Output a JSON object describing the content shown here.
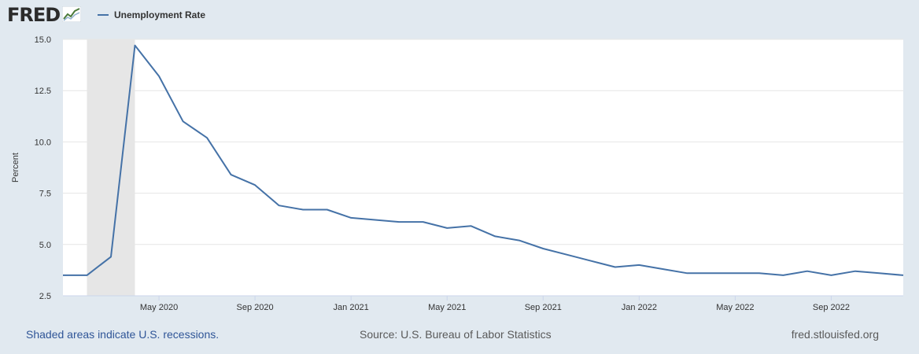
{
  "header": {
    "logo_text": "FRED",
    "legend_label": "Unemployment Rate"
  },
  "footer": {
    "recession_note": "Shaded areas indicate U.S. recessions.",
    "source": "Source: U.S. Bureau of Labor Statistics",
    "site": "fred.stlouisfed.org"
  },
  "colors": {
    "line": "#4572a7",
    "recession_shade": "#e6e6e6",
    "background": "#e1e9f0",
    "plot_background": "#ffffff",
    "grid": "#e6e6e6",
    "footer_link": "#2f5597"
  },
  "chart_data": {
    "type": "line",
    "ylabel": "Percent",
    "xlabel": "",
    "ylim": [
      2.5,
      15.0
    ],
    "x_range": [
      "2020-01",
      "2022-12"
    ],
    "y_ticks": [
      "2.5",
      "5.0",
      "7.5",
      "10.0",
      "12.5",
      "15.0"
    ],
    "x_ticks": [
      {
        "x": "2020-05",
        "label": "May 2020"
      },
      {
        "x": "2020-09",
        "label": "Sep 2020"
      },
      {
        "x": "2021-01",
        "label": "Jan 2021"
      },
      {
        "x": "2021-05",
        "label": "May 2021"
      },
      {
        "x": "2021-09",
        "label": "Sep 2021"
      },
      {
        "x": "2022-01",
        "label": "Jan 2022"
      },
      {
        "x": "2022-05",
        "label": "May 2022"
      },
      {
        "x": "2022-09",
        "label": "Sep 2022"
      }
    ],
    "recessions": [
      {
        "start": "2020-02",
        "end": "2020-04"
      }
    ],
    "grid": true,
    "legend": "top-left",
    "series": [
      {
        "name": "Unemployment Rate",
        "x": [
          "2020-01",
          "2020-02",
          "2020-03",
          "2020-04",
          "2020-05",
          "2020-06",
          "2020-07",
          "2020-08",
          "2020-09",
          "2020-10",
          "2020-11",
          "2020-12",
          "2021-01",
          "2021-02",
          "2021-03",
          "2021-04",
          "2021-05",
          "2021-06",
          "2021-07",
          "2021-08",
          "2021-09",
          "2021-10",
          "2021-11",
          "2021-12",
          "2022-01",
          "2022-02",
          "2022-03",
          "2022-04",
          "2022-05",
          "2022-06",
          "2022-07",
          "2022-08",
          "2022-09",
          "2022-10",
          "2022-11",
          "2022-12"
        ],
        "values": [
          3.5,
          3.5,
          4.4,
          14.7,
          13.2,
          11.0,
          10.2,
          8.4,
          7.9,
          6.9,
          6.7,
          6.7,
          6.3,
          6.2,
          6.1,
          6.1,
          5.8,
          5.9,
          5.4,
          5.2,
          4.8,
          4.5,
          4.2,
          3.9,
          4.0,
          3.8,
          3.6,
          3.6,
          3.6,
          3.6,
          3.5,
          3.7,
          3.5,
          3.7,
          3.6,
          3.5
        ]
      }
    ]
  }
}
